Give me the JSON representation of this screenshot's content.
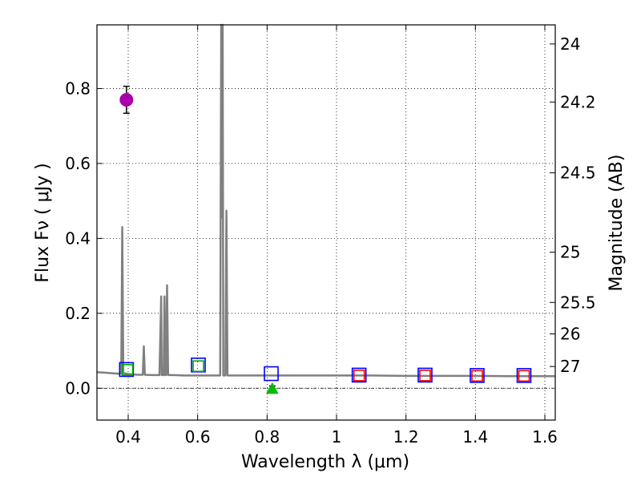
{
  "chart_data": {
    "type": "scatter",
    "title": "",
    "xlabel": "Wavelength  λ (μm)",
    "ylabel": "Flux  Fν  ( μJy )",
    "ylabel_right": "Magnitude (AB)",
    "xlim": [
      0.31,
      1.63
    ],
    "ylim": [
      -0.085,
      0.97
    ],
    "grid": true,
    "x_ticks": [
      {
        "value": 0.4,
        "label": "0.4"
      },
      {
        "value": 0.6,
        "label": "0.6"
      },
      {
        "value": 0.8,
        "label": "0.8"
      },
      {
        "value": 1.0,
        "label": "1"
      },
      {
        "value": 1.2,
        "label": "1.2"
      },
      {
        "value": 1.4,
        "label": "1.4"
      },
      {
        "value": 1.6,
        "label": "1.6"
      }
    ],
    "y_ticks": [
      {
        "value": 0.0,
        "label": "0.0"
      },
      {
        "value": 0.2,
        "label": "0.2"
      },
      {
        "value": 0.4,
        "label": "0.4"
      },
      {
        "value": 0.6,
        "label": "0.6"
      },
      {
        "value": 0.8,
        "label": "0.8"
      }
    ],
    "mag_ticks": [
      {
        "value": 0.919,
        "label": "24"
      },
      {
        "value": 0.764,
        "label": "24.2"
      },
      {
        "value": 0.575,
        "label": "24.5"
      },
      {
        "value": 0.363,
        "label": "25"
      },
      {
        "value": 0.229,
        "label": "25.5"
      },
      {
        "value": 0.145,
        "label": "26"
      },
      {
        "value": 0.058,
        "label": "27"
      }
    ],
    "series": [
      {
        "name": "model spectrum",
        "kind": "line",
        "color": "#808080",
        "x": [
          0.31,
          0.34,
          0.37,
          0.38,
          0.383,
          0.386,
          0.389,
          0.395,
          0.4,
          0.41,
          0.43,
          0.442,
          0.445,
          0.448,
          0.47,
          0.49,
          0.495,
          0.4965,
          0.498,
          0.502,
          0.5045,
          0.507,
          0.509,
          0.512,
          0.515,
          0.53,
          0.56,
          0.6,
          0.62,
          0.64,
          0.66,
          0.665,
          0.668,
          0.67,
          0.672,
          0.674,
          0.677,
          0.68,
          0.683,
          0.686,
          0.69,
          0.72,
          0.76,
          0.8,
          0.85,
          0.9,
          1.0,
          1.1,
          1.2,
          1.3,
          1.4,
          1.5,
          1.63
        ],
        "y": [
          0.043,
          0.041,
          0.039,
          0.039,
          0.43,
          0.04,
          0.04,
          0.039,
          0.038,
          0.037,
          0.036,
          0.036,
          0.112,
          0.036,
          0.035,
          0.035,
          0.245,
          0.035,
          0.035,
          0.035,
          0.245,
          0.035,
          0.035,
          0.275,
          0.035,
          0.035,
          0.034,
          0.034,
          0.034,
          0.034,
          0.034,
          0.034,
          0.97,
          0.456,
          0.97,
          0.034,
          0.034,
          0.034,
          0.474,
          0.034,
          0.034,
          0.034,
          0.034,
          0.034,
          0.034,
          0.034,
          0.034,
          0.034,
          0.033,
          0.033,
          0.033,
          0.032,
          0.032
        ]
      },
      {
        "name": "photometry (blue squares)",
        "kind": "scatter",
        "marker": "square-open",
        "color": "#0000ff",
        "x": [
          0.395,
          0.602,
          0.812,
          1.065,
          1.255,
          1.405,
          1.54
        ],
        "y": [
          0.05,
          0.062,
          0.039,
          0.035,
          0.035,
          0.034,
          0.034
        ]
      },
      {
        "name": "photometry (green squares)",
        "kind": "scatter",
        "marker": "square-open",
        "color": "#00aa00",
        "x": [
          0.398,
          0.602
        ],
        "y": [
          0.049,
          0.059
        ]
      },
      {
        "name": "photometry (red squares)",
        "kind": "scatter",
        "marker": "square-open",
        "color": "#ff0000",
        "x": [
          1.065,
          1.255,
          1.405,
          1.54
        ],
        "y": [
          0.034,
          0.034,
          0.033,
          0.033
        ]
      },
      {
        "name": "measurement (magenta)",
        "kind": "errorbar",
        "marker": "circle",
        "color": "#aa00aa",
        "x": [
          0.395
        ],
        "y": [
          0.77
        ],
        "yerr": [
          0.036
        ]
      },
      {
        "name": "measurement (green)",
        "kind": "errorbar",
        "marker": "triangle",
        "color": "#00bb00",
        "x": [
          0.815
        ],
        "y": [
          -0.001
        ],
        "yerr": [
          0.007
        ]
      }
    ]
  }
}
